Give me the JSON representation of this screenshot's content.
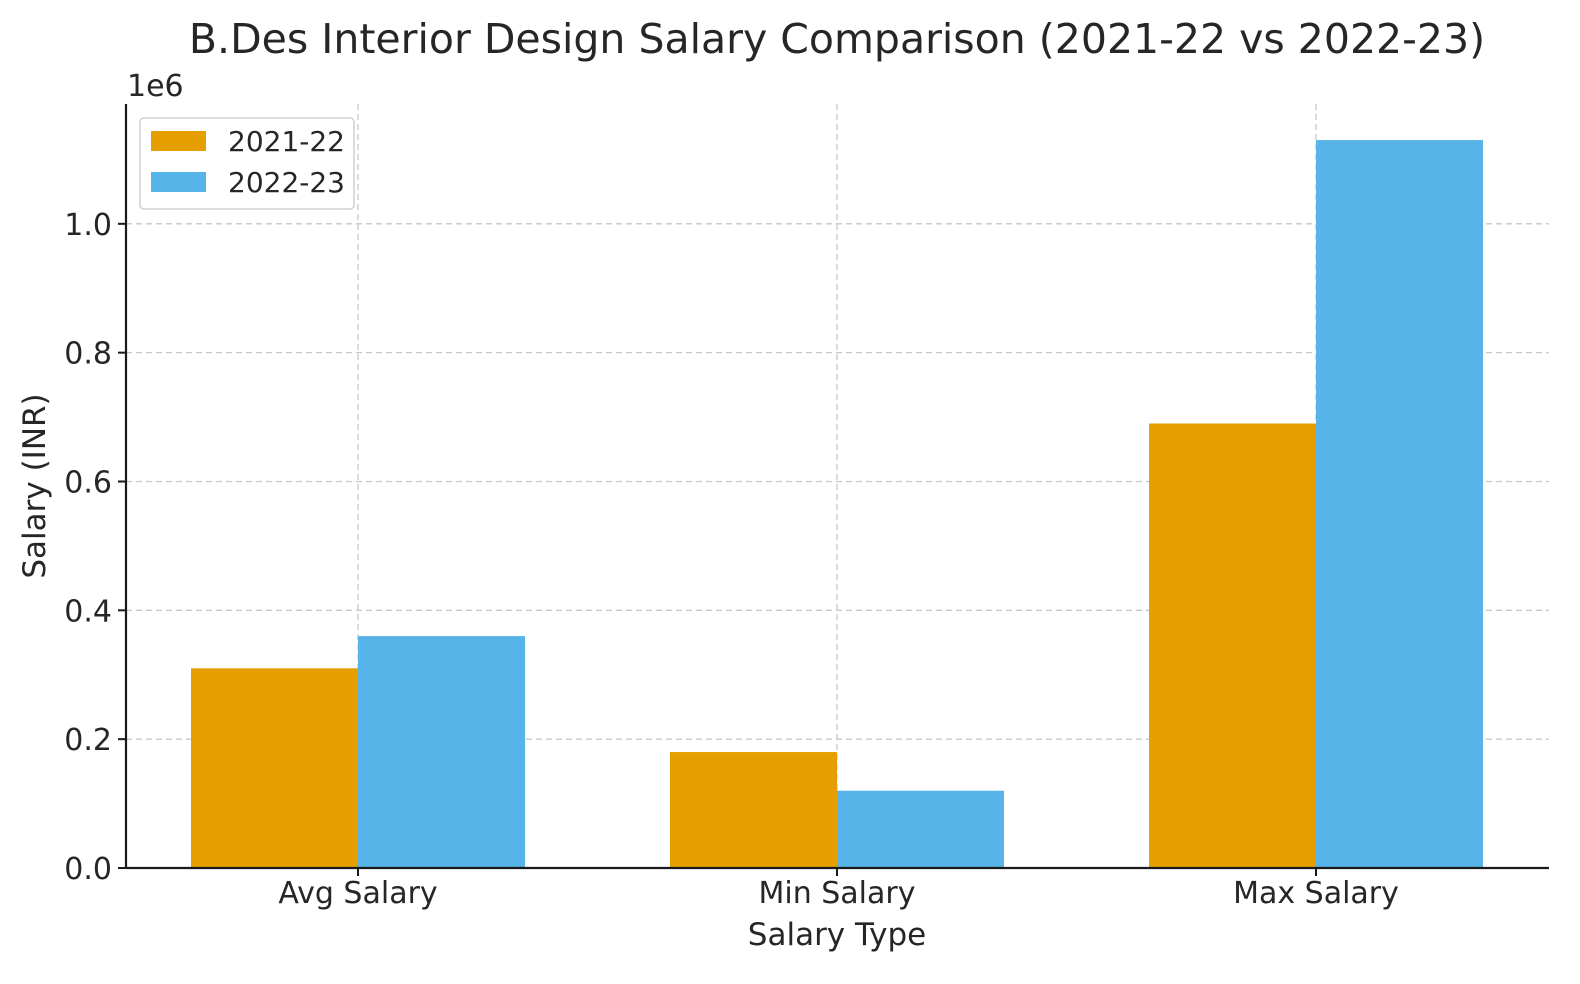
{
  "chart_data": {
    "type": "bar",
    "title": "B.Des Interior Design Salary Comparison (2021-22 vs 2022-23)",
    "xlabel": "Salary Type",
    "ylabel": "Salary (INR)",
    "y_offset_label": "1e6",
    "categories": [
      "Avg Salary",
      "Min Salary",
      "Max Salary"
    ],
    "series": [
      {
        "name": "2021-22",
        "color": "#E69F00",
        "values": [
          310000,
          180000,
          690000
        ]
      },
      {
        "name": "2022-23",
        "color": "#56B4E9",
        "values": [
          360000,
          120000,
          1130000
        ]
      }
    ],
    "ylim": [
      0,
      1186000
    ],
    "yticks": [
      0,
      200000,
      400000,
      600000,
      800000,
      1000000
    ],
    "ytick_labels": [
      "0.0",
      "0.2",
      "0.4",
      "0.6",
      "0.8",
      "1.0"
    ],
    "grid": true,
    "legend_position": "top-left"
  }
}
